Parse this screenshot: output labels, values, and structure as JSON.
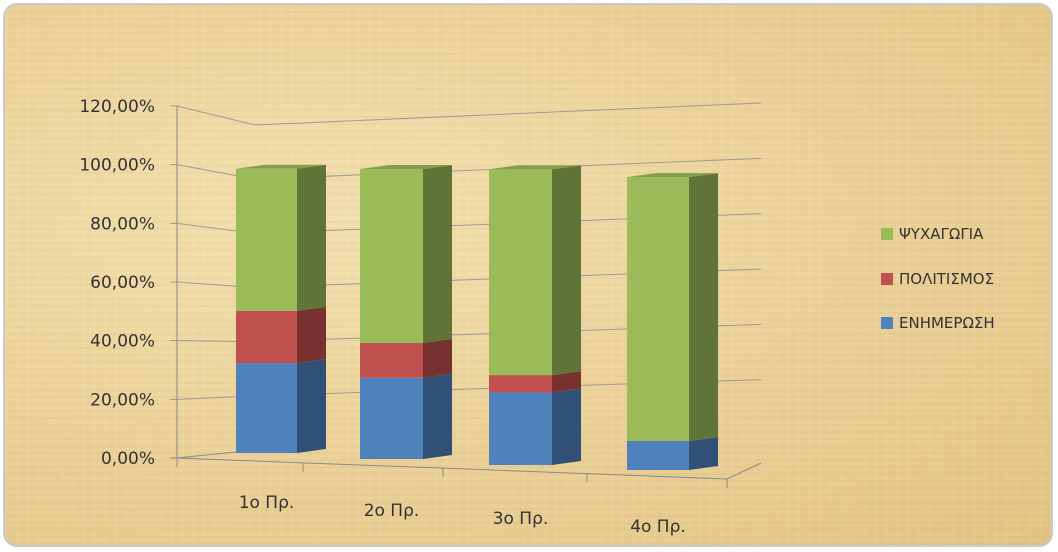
{
  "chart_data": {
    "type": "bar",
    "stacked": true,
    "three_d": true,
    "categories": [
      "1ο Πρ.",
      "2ο Πρ.",
      "3ο Πρ.",
      "4ο Πρ."
    ],
    "series": [
      {
        "name": "ΕΝΗΜΕΡΩΣΗ",
        "color": "#4f81bd",
        "values": [
          31,
          28,
          25,
          10
        ]
      },
      {
        "name": "ΠΟΛΙΤΙΣΜΟΣ",
        "color": "#c0504d",
        "values": [
          18,
          12,
          6,
          0
        ]
      },
      {
        "name": "ΨΥΧΑΓΩΓΙΑ",
        "color": "#9bbb59",
        "values": [
          49,
          60,
          71,
          91
        ]
      }
    ],
    "y_tick_labels": [
      "0,00%",
      "20,00%",
      "40,00%",
      "60,00%",
      "80,00%",
      "100,00%",
      "120,00%"
    ],
    "ylim": [
      0,
      120
    ],
    "grid": true,
    "legend_position": "right",
    "legend_order": [
      "ΨΥΧΑΓΩΓΙΑ",
      "ΠΟΛΙΤΙΣΜΟΣ",
      "ΕΝΗΜΕΡΩΣΗ"
    ]
  }
}
